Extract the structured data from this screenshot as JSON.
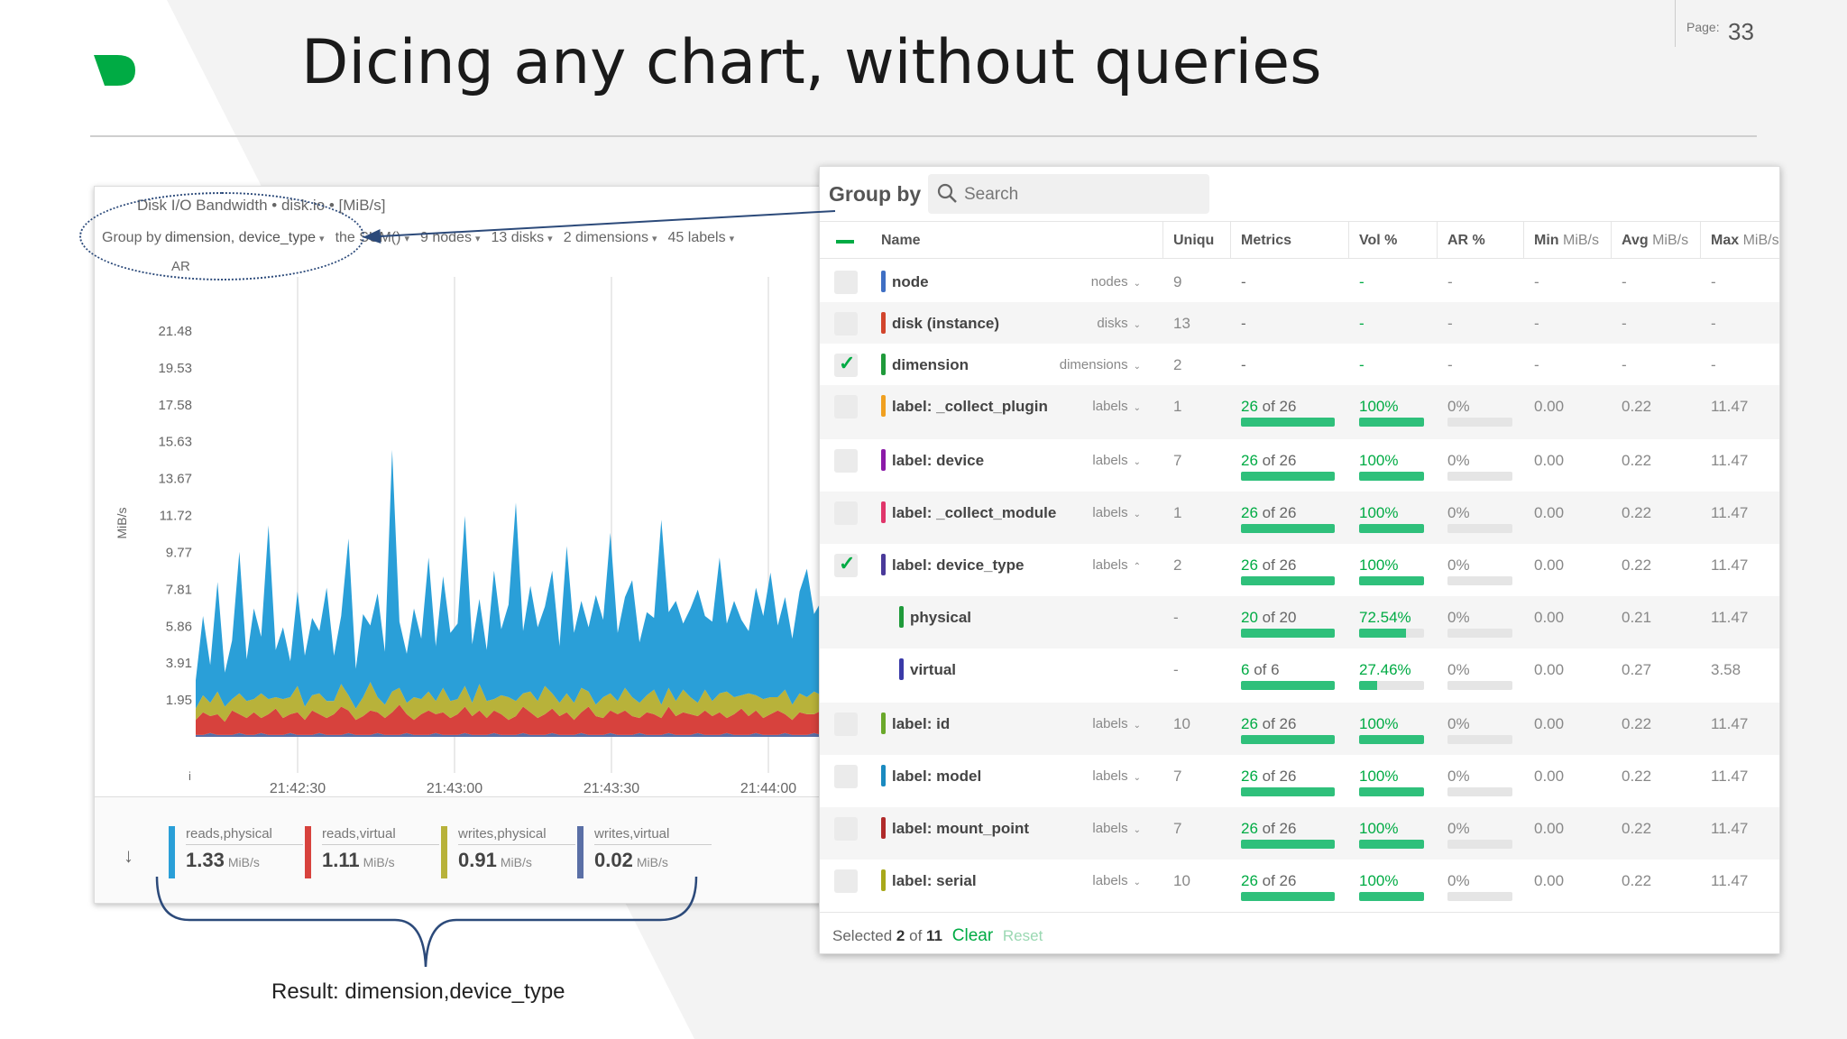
{
  "slide": {
    "title": "Dicing any chart, without queries",
    "page_label": "Page:",
    "page_number": "33",
    "result_label": "Result: dimension,device_type"
  },
  "chart": {
    "title": "Disk I/O Bandwidth • disk.io • [MiB/s]",
    "toolbar": {
      "group_by_prefix": "Group by",
      "group_by_value": "dimension, device_type",
      "aggregation": "the SUM()",
      "nodes": "9 nodes",
      "disks": "13 disks",
      "dimensions": "2 dimensions",
      "labels": "45 labels"
    },
    "ar_label": "AR",
    "i_label": "i",
    "ylabel": "MiB/s",
    "down_arrow": "↓",
    "legend": [
      {
        "name": "reads,physical",
        "value": "1.33",
        "unit": "MiB/s",
        "color": "#2a9fd8"
      },
      {
        "name": "reads,virtual",
        "value": "1.11",
        "unit": "MiB/s",
        "color": "#d7423d"
      },
      {
        "name": "writes,physical",
        "value": "0.91",
        "unit": "MiB/s",
        "color": "#b8b23a"
      },
      {
        "name": "writes,virtual",
        "value": "0.02",
        "unit": "MiB/s",
        "color": "#5a6fa6"
      }
    ]
  },
  "chart_data": {
    "type": "area",
    "ylabel": "MiB/s",
    "y_ticks": [
      "21.48",
      "19.53",
      "17.58",
      "15.63",
      "13.67",
      "11.72",
      "9.77",
      "7.81",
      "5.86",
      "3.91",
      "1.95"
    ],
    "x_ticks": [
      "21:42:30",
      "21:43:00",
      "21:43:30",
      "21:44:00"
    ],
    "ylim": [
      0,
      23.4
    ],
    "stacked": true,
    "series": [
      {
        "name": "writes,virtual",
        "color": "#5a6fa6",
        "values": [
          0.1,
          0.1,
          0.2,
          0.1,
          0.1,
          0.1,
          0.2,
          0.1,
          0.1,
          0.2,
          0.1,
          0.1,
          0.1,
          0.2,
          0.1,
          0.1,
          0.1,
          0.2,
          0.1,
          0.1,
          0.1,
          0.2,
          0.1,
          0.1,
          0.1,
          0.2,
          0.1,
          0.1,
          0.1,
          0.2,
          0.1,
          0.1,
          0.1,
          0.2,
          0.1,
          0.1,
          0.1,
          0.2,
          0.1,
          0.1,
          0.1,
          0.2,
          0.1,
          0.1,
          0.1,
          0.2,
          0.1,
          0.1,
          0.1,
          0.2,
          0.1,
          0.1,
          0.1,
          0.2,
          0.1,
          0.1,
          0.1,
          0.2,
          0.1,
          0.1,
          0.1,
          0.2,
          0.1,
          0.1,
          0.1,
          0.2,
          0.1,
          0.1,
          0.1,
          0.2,
          0.1,
          0.1,
          0.1,
          0.2,
          0.1,
          0.1,
          0.1,
          0.2,
          0.1,
          0.1,
          0.1,
          0.2,
          0.1,
          0.1,
          0.1,
          0.2,
          0.1,
          0.1,
          0.1,
          0.2
        ]
      },
      {
        "name": "reads,virtual",
        "color": "#d7423d",
        "values": [
          0.8,
          1.2,
          0.9,
          1.1,
          0.7,
          1.3,
          1.0,
          0.9,
          1.2,
          0.8,
          1.1,
          1.4,
          0.9,
          1.0,
          1.2,
          0.8,
          1.3,
          1.0,
          0.9,
          1.1,
          1.5,
          1.2,
          0.8,
          1.0,
          1.3,
          1.1,
          0.9,
          1.2,
          1.6,
          1.0,
          0.8,
          1.1,
          1.3,
          1.0,
          1.2,
          0.9,
          1.1,
          1.4,
          1.0,
          1.3,
          0.9,
          1.2,
          1.1,
          0.8,
          1.0,
          1.4,
          1.2,
          0.9,
          1.1,
          1.3,
          1.0,
          1.2,
          0.8,
          1.1,
          1.5,
          1.0,
          0.9,
          1.2,
          1.1,
          1.3,
          1.0,
          0.8,
          1.2,
          1.1,
          0.9,
          1.4,
          1.0,
          1.2,
          1.1,
          0.9,
          1.3,
          1.0,
          1.2,
          0.8,
          1.1,
          1.4,
          1.0,
          1.2,
          0.9,
          1.1,
          1.3,
          1.0,
          0.8,
          1.2,
          1.1,
          1.0,
          1.3,
          0.9,
          1.2,
          1.0
        ]
      },
      {
        "name": "writes,physical",
        "color": "#b8b23a",
        "values": [
          0.6,
          0.9,
          0.7,
          1.2,
          0.8,
          0.6,
          1.1,
          0.9,
          0.7,
          1.3,
          0.8,
          0.6,
          1.0,
          0.9,
          1.4,
          0.7,
          0.8,
          1.1,
          0.9,
          0.7,
          1.2,
          0.8,
          0.6,
          1.0,
          1.5,
          0.8,
          0.7,
          1.1,
          0.9,
          0.6,
          1.2,
          0.8,
          1.0,
          0.7,
          1.3,
          0.9,
          0.8,
          1.1,
          0.7,
          1.4,
          0.9,
          0.6,
          1.0,
          1.2,
          0.8,
          0.7,
          1.1,
          0.9,
          1.5,
          0.8,
          0.7,
          1.0,
          0.9,
          1.3,
          0.8,
          0.6,
          1.1,
          0.9,
          0.7,
          1.2,
          1.0,
          0.8,
          0.9,
          1.3,
          0.7,
          1.0,
          0.8,
          1.2,
          0.9,
          0.7,
          1.1,
          0.8,
          1.0,
          1.4,
          0.9,
          0.7,
          1.2,
          0.8,
          1.0,
          0.9,
          0.7,
          1.3,
          0.8,
          1.0,
          0.9,
          1.2,
          0.8,
          0.7,
          1.1,
          0.9
        ]
      },
      {
        "name": "reads,physical",
        "color": "#2a9fd8",
        "values": [
          1.5,
          4.2,
          2.0,
          5.8,
          1.8,
          3.1,
          7.5,
          2.2,
          4.8,
          3.0,
          9.2,
          2.5,
          3.8,
          1.9,
          5.0,
          2.7,
          4.1,
          3.3,
          6.0,
          2.4,
          3.6,
          8.3,
          2.1,
          4.4,
          3.0,
          5.5,
          2.8,
          12.8,
          3.5,
          2.6,
          4.7,
          3.2,
          7.1,
          2.9,
          5.9,
          3.6,
          4.0,
          9.0,
          3.1,
          4.5,
          2.7,
          6.8,
          3.5,
          4.9,
          10.5,
          3.3,
          5.6,
          3.9,
          4.2,
          6.5,
          3.0,
          7.8,
          3.7,
          4.6,
          3.4,
          5.8,
          4.1,
          8.5,
          3.6,
          4.8,
          6.2,
          3.2,
          4.4,
          3.8,
          9.8,
          4.0,
          5.3,
          3.5,
          4.7,
          6.0,
          3.9,
          4.2,
          7.2,
          3.6,
          5.1,
          4.0,
          3.3,
          5.7,
          4.4,
          6.6,
          3.8,
          4.9,
          3.5,
          5.4,
          6.8,
          4.1,
          5.0,
          3.7,
          6.3,
          4.6
        ]
      }
    ]
  },
  "groupby": {
    "title": "Group by",
    "search_placeholder": "Search",
    "headers": {
      "name": "Name",
      "uniq": "Uniqu",
      "metrics": "Metrics",
      "vol": "Vol %",
      "ar": "AR %",
      "min": "Min",
      "min_unit": "MiB/s",
      "avg": "Avg",
      "avg_unit": "MiB/s",
      "max": "Max",
      "max_unit": "MiB/s"
    },
    "rows": [
      {
        "name": "node",
        "group": "nodes",
        "caret": "⌄",
        "uniq": "9",
        "metrics_a": "",
        "metrics_b": "-",
        "vol": "-",
        "ar": "-",
        "min": "-",
        "avg": "-",
        "max": "-",
        "color": "#3f6fc4",
        "checked": false,
        "indent": false,
        "bars": false,
        "met_pct": 0,
        "vol_pct": 0
      },
      {
        "name": "disk (instance)",
        "group": "disks",
        "caret": "⌄",
        "uniq": "13",
        "metrics_a": "",
        "metrics_b": "-",
        "vol": "-",
        "ar": "-",
        "min": "-",
        "avg": "-",
        "max": "-",
        "color": "#d2452c",
        "checked": false,
        "indent": false,
        "bars": false,
        "met_pct": 0,
        "vol_pct": 0
      },
      {
        "name": "dimension",
        "group": "dimensions",
        "caret": "⌄",
        "uniq": "2",
        "metrics_a": "",
        "metrics_b": "-",
        "vol": "-",
        "ar": "-",
        "min": "-",
        "avg": "-",
        "max": "-",
        "color": "#1f9a3a",
        "checked": true,
        "indent": false,
        "bars": false,
        "met_pct": 0,
        "vol_pct": 0
      },
      {
        "name": "label: _collect_plugin",
        "group": "labels",
        "caret": "⌄",
        "uniq": "1",
        "metrics_a": "26",
        "metrics_b": " of 26",
        "vol": "100%",
        "ar": "0%",
        "min": "0.00",
        "avg": "0.22",
        "max": "11.47",
        "color": "#f0a020",
        "checked": false,
        "indent": false,
        "bars": true,
        "met_pct": 100,
        "vol_pct": 100
      },
      {
        "name": "label: device",
        "group": "labels",
        "caret": "⌄",
        "uniq": "7",
        "metrics_a": "26",
        "metrics_b": " of 26",
        "vol": "100%",
        "ar": "0%",
        "min": "0.00",
        "avg": "0.22",
        "max": "11.47",
        "color": "#8b1aa8",
        "checked": false,
        "indent": false,
        "bars": true,
        "met_pct": 100,
        "vol_pct": 100
      },
      {
        "name": "label: _collect_module",
        "group": "labels",
        "caret": "⌄",
        "uniq": "1",
        "metrics_a": "26",
        "metrics_b": " of 26",
        "vol": "100%",
        "ar": "0%",
        "min": "0.00",
        "avg": "0.22",
        "max": "11.47",
        "color": "#e0356a",
        "checked": false,
        "indent": false,
        "bars": true,
        "met_pct": 100,
        "vol_pct": 100
      },
      {
        "name": "label: device_type",
        "group": "labels",
        "caret": "⌃",
        "uniq": "2",
        "metrics_a": "26",
        "metrics_b": " of 26",
        "vol": "100%",
        "ar": "0%",
        "min": "0.00",
        "avg": "0.22",
        "max": "11.47",
        "color": "#4a3a9a",
        "checked": true,
        "indent": false,
        "bars": true,
        "met_pct": 100,
        "vol_pct": 100
      },
      {
        "name": "physical",
        "group": "",
        "caret": "",
        "uniq": "-",
        "metrics_a": "20",
        "metrics_b": " of 20",
        "vol": "72.54%",
        "ar": "0%",
        "min": "0.00",
        "avg": "0.21",
        "max": "11.47",
        "color": "#1f9a3a",
        "checked": null,
        "indent": true,
        "bars": true,
        "met_pct": 100,
        "vol_pct": 72.54
      },
      {
        "name": "virtual",
        "group": "",
        "caret": "",
        "uniq": "-",
        "metrics_a": "6",
        "metrics_b": " of 6",
        "vol": "27.46%",
        "ar": "0%",
        "min": "0.00",
        "avg": "0.27",
        "max": "3.58",
        "color": "#3a3aa8",
        "checked": null,
        "indent": true,
        "bars": true,
        "met_pct": 100,
        "vol_pct": 27.46
      },
      {
        "name": "label: id",
        "group": "labels",
        "caret": "⌄",
        "uniq": "10",
        "metrics_a": "26",
        "metrics_b": " of 26",
        "vol": "100%",
        "ar": "0%",
        "min": "0.00",
        "avg": "0.22",
        "max": "11.47",
        "color": "#6aa82a",
        "checked": false,
        "indent": false,
        "bars": true,
        "met_pct": 100,
        "vol_pct": 100
      },
      {
        "name": "label: model",
        "group": "labels",
        "caret": "⌄",
        "uniq": "7",
        "metrics_a": "26",
        "metrics_b": " of 26",
        "vol": "100%",
        "ar": "0%",
        "min": "0.00",
        "avg": "0.22",
        "max": "11.47",
        "color": "#1a8ac0",
        "checked": false,
        "indent": false,
        "bars": true,
        "met_pct": 100,
        "vol_pct": 100
      },
      {
        "name": "label: mount_point",
        "group": "labels",
        "caret": "⌄",
        "uniq": "7",
        "metrics_a": "26",
        "metrics_b": " of 26",
        "vol": "100%",
        "ar": "0%",
        "min": "0.00",
        "avg": "0.22",
        "max": "11.47",
        "color": "#b02a2a",
        "checked": false,
        "indent": false,
        "bars": true,
        "met_pct": 100,
        "vol_pct": 100
      },
      {
        "name": "label: serial",
        "group": "labels",
        "caret": "⌄",
        "uniq": "10",
        "metrics_a": "26",
        "metrics_b": " of 26",
        "vol": "100%",
        "ar": "0%",
        "min": "0.00",
        "avg": "0.22",
        "max": "11.47",
        "color": "#a8a81a",
        "checked": false,
        "indent": false,
        "bars": true,
        "met_pct": 100,
        "vol_pct": 100
      }
    ],
    "footer": {
      "selected_prefix": "Selected",
      "selected_count": "2",
      "of": "of",
      "total": "11",
      "clear": "Clear",
      "reset": "Reset"
    }
  }
}
